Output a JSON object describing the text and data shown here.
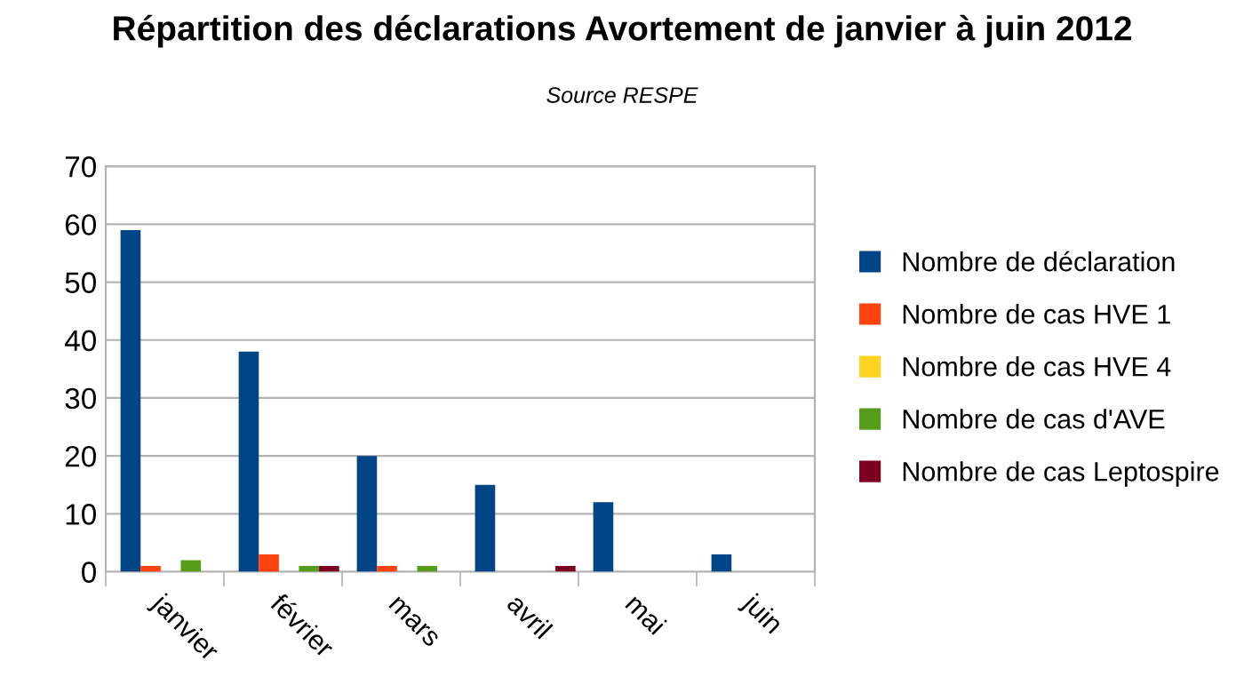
{
  "chart_data": {
    "type": "bar",
    "title": "Répartition des déclarations Avortement de janvier à juin 2012",
    "subtitle": "Source RESPE",
    "categories": [
      "janvier",
      "février",
      "mars",
      "avril",
      "mai",
      "juin"
    ],
    "series": [
      {
        "name": "Nombre de déclaration",
        "color": "#004586",
        "values": [
          59,
          38,
          20,
          15,
          12,
          3
        ]
      },
      {
        "name": "Nombre de cas HVE 1",
        "color": "#ff420e",
        "values": [
          1,
          3,
          1,
          0,
          0,
          0
        ]
      },
      {
        "name": "Nombre de cas HVE 4",
        "color": "#ffd320",
        "values": [
          0,
          0,
          0,
          0,
          0,
          0
        ]
      },
      {
        "name": "Nombre de cas d'AVE",
        "color": "#579d1c",
        "values": [
          2,
          1,
          1,
          0,
          0,
          0
        ]
      },
      {
        "name": "Nombre de cas Leptospire",
        "color": "#7e0021",
        "values": [
          0,
          1,
          0,
          1,
          0,
          0
        ]
      }
    ],
    "ylim": [
      0,
      70
    ],
    "yticks": [
      0,
      10,
      20,
      30,
      40,
      50,
      60,
      70
    ],
    "grid": "y",
    "legend": "right"
  }
}
